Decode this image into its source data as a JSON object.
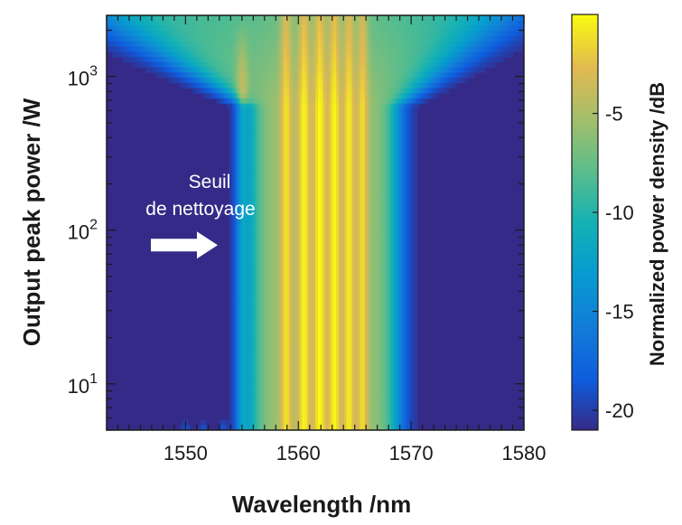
{
  "chart_data": {
    "type": "heatmap",
    "title": "",
    "xlabel": "Wavelength /nm",
    "ylabel": "Output peak power /W",
    "colorbar_label": "Normalized power density /dB",
    "xlim": [
      1543,
      1580
    ],
    "ylim": [
      5,
      2500
    ],
    "y_scale": "log",
    "x_ticks": [
      {
        "value": 1550,
        "label": "1550"
      },
      {
        "value": 1560,
        "label": "1560"
      },
      {
        "value": 1570,
        "label": "1570"
      },
      {
        "value": 1580,
        "label": "1580"
      }
    ],
    "y_ticks": [
      {
        "value": 10,
        "base": "10",
        "exp": "1"
      },
      {
        "value": 100,
        "base": "10",
        "exp": "2"
      },
      {
        "value": 1000,
        "base": "10",
        "exp": "3"
      }
    ],
    "colorbar": {
      "range": [
        -21,
        0
      ],
      "colormap": "parula",
      "ticks": [
        {
          "value": -5,
          "label": "-5"
        },
        {
          "value": -10,
          "label": "-10"
        },
        {
          "value": -15,
          "label": "-15"
        },
        {
          "value": -20,
          "label": "-20"
        }
      ]
    },
    "spectral_lines_nm": [
      1558.9,
      1560.5,
      1561.9,
      1563.2,
      1564.5,
      1565.7
    ],
    "annotation": {
      "lines": [
        "Seuil",
        "de nettoyage"
      ],
      "arrow_power_w": 80
    },
    "colors": {
      "background": "#352a87",
      "axis": "#1a1a1a",
      "annotation": "#ffffff"
    }
  }
}
